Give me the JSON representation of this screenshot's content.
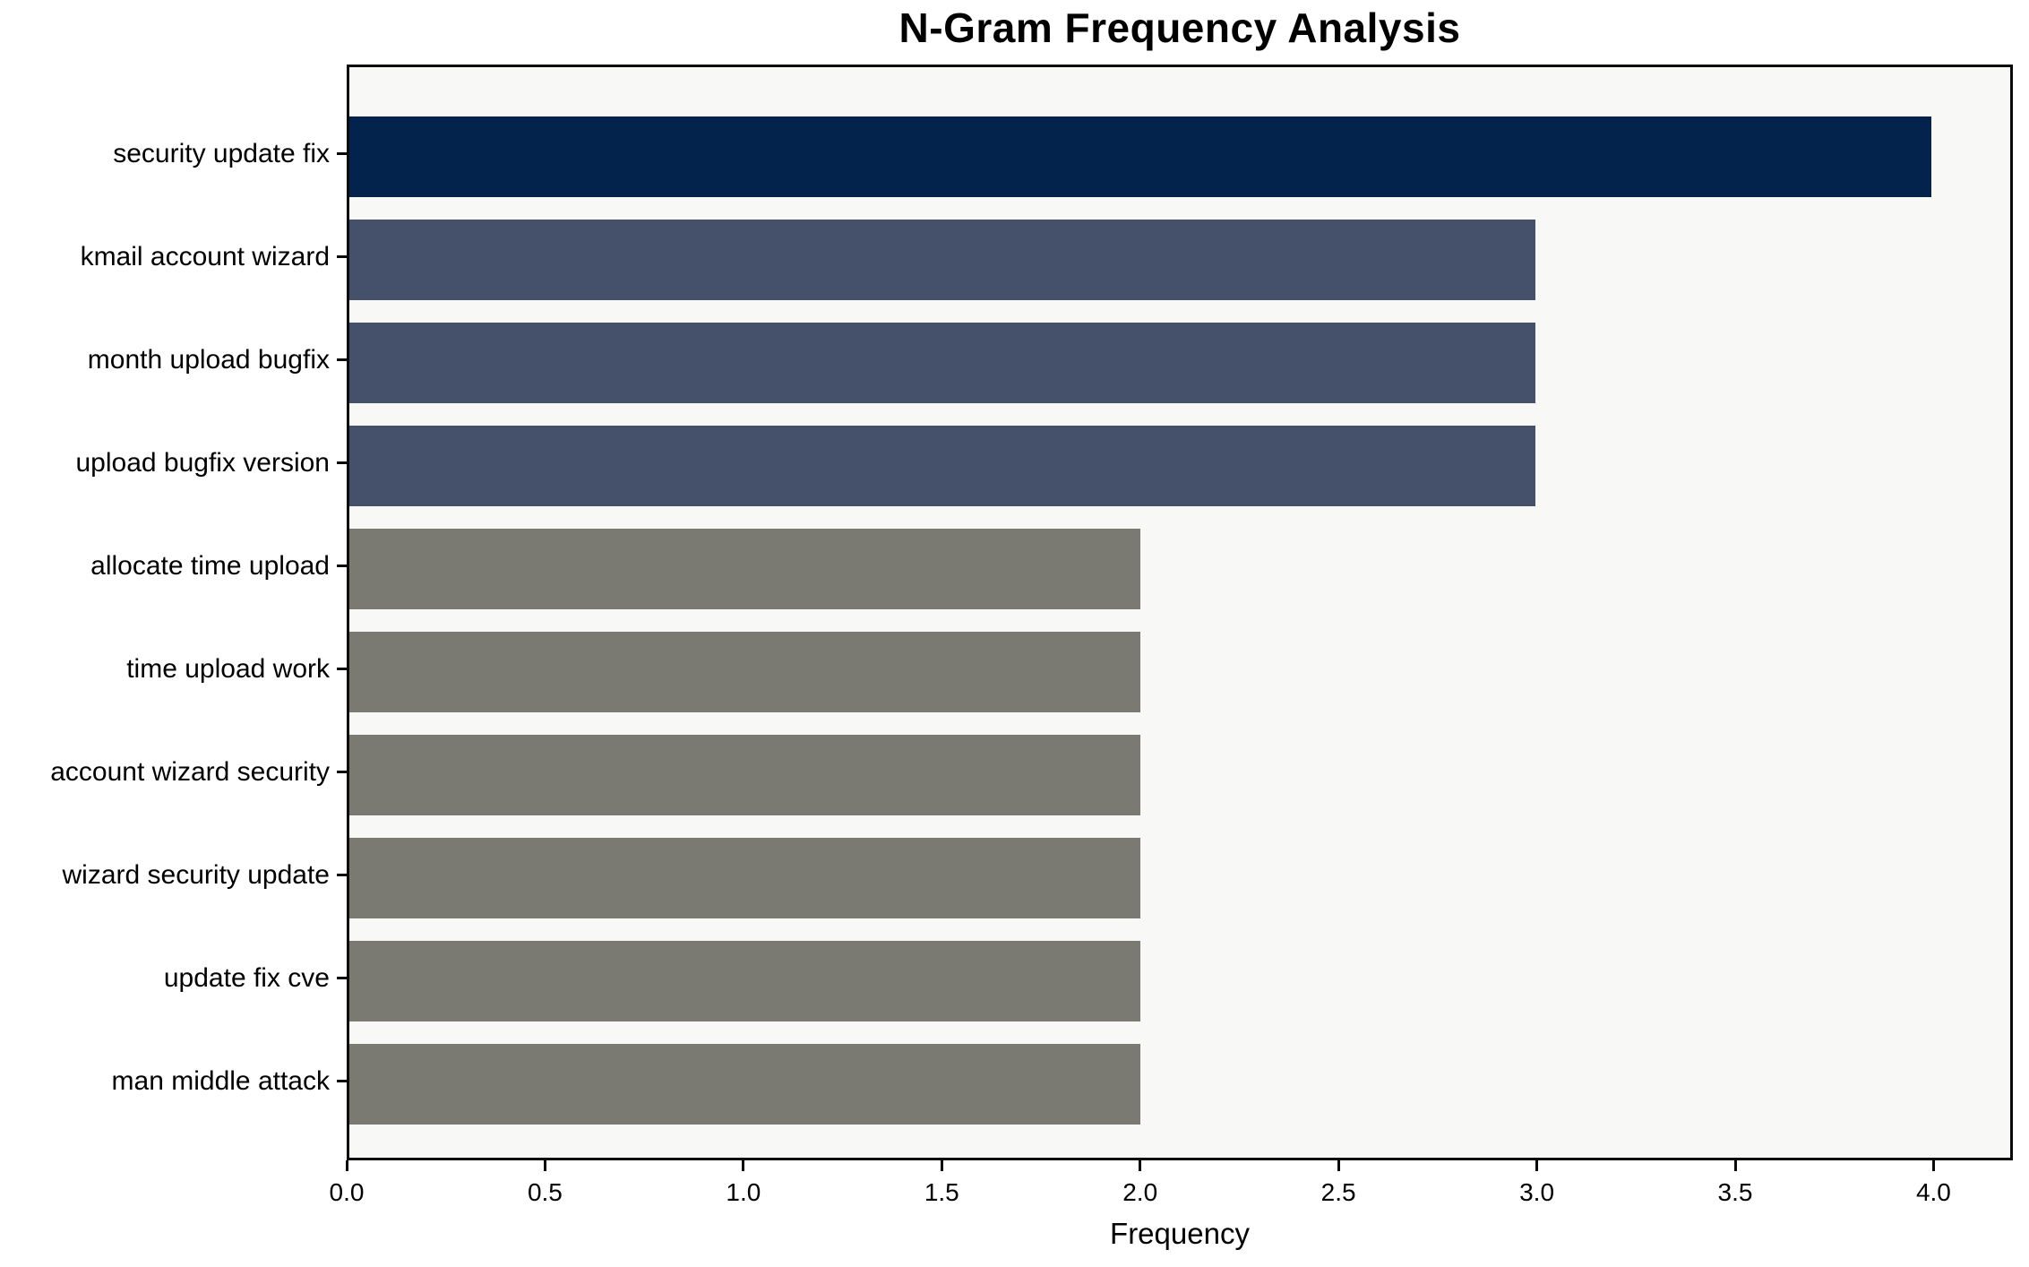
{
  "chart_data": {
    "type": "bar",
    "orientation": "horizontal",
    "title": "N-Gram Frequency Analysis",
    "xlabel": "Frequency",
    "ylabel": "",
    "categories": [
      "security update fix",
      "kmail account wizard",
      "month upload bugfix",
      "upload bugfix version",
      "allocate time upload",
      "time upload work",
      "account wizard security",
      "wizard security update",
      "update fix cve",
      "man middle attack"
    ],
    "values": [
      4,
      3,
      3,
      3,
      2,
      2,
      2,
      2,
      2,
      2
    ],
    "bar_colors": [
      "#03234d",
      "#45506b",
      "#45506b",
      "#45506b",
      "#7a7a73",
      "#7a7a73",
      "#7a7a73",
      "#7a7a73",
      "#7a7a73",
      "#7a7a73"
    ],
    "xlim": [
      0,
      4.2
    ],
    "xticks": [
      0.0,
      0.5,
      1.0,
      1.5,
      2.0,
      2.5,
      3.0,
      3.5,
      4.0
    ],
    "xtick_labels": [
      "0.0",
      "0.5",
      "1.0",
      "1.5",
      "2.0",
      "2.5",
      "3.0",
      "3.5",
      "4.0"
    ],
    "grid": false,
    "legend_position": "none",
    "colors": {
      "plot_background": "#f8f8f6",
      "figure_background": "#ffffff",
      "spine": "#0a0a0a",
      "text": "#000000"
    }
  }
}
